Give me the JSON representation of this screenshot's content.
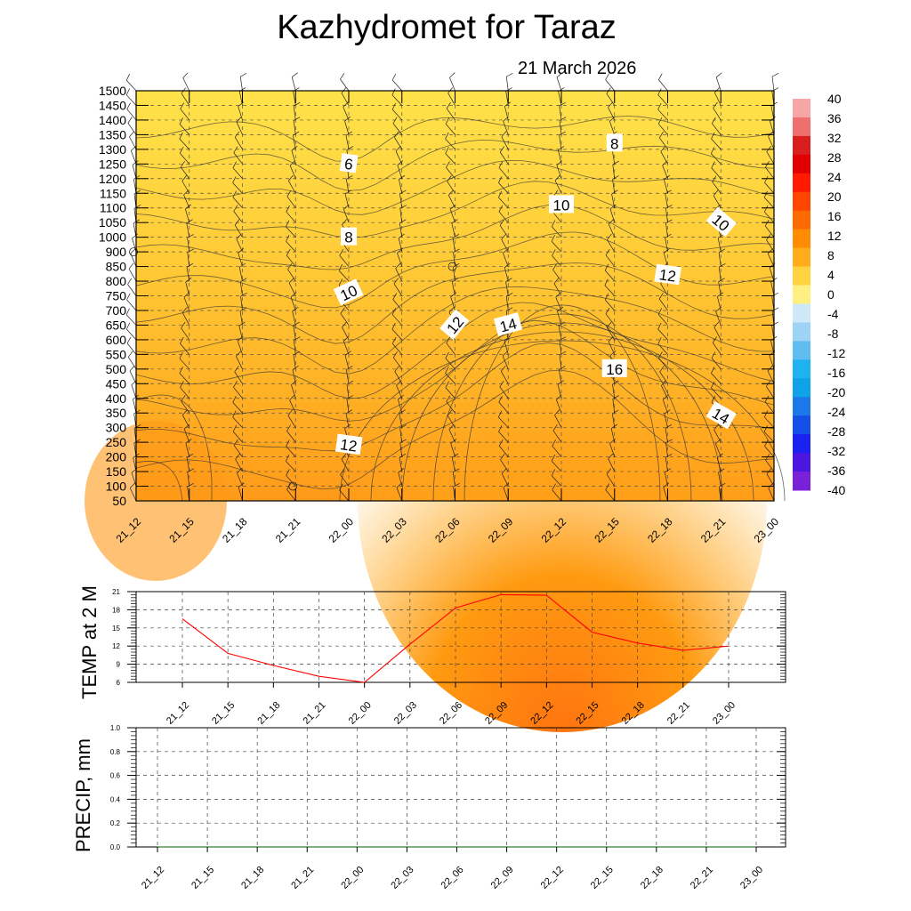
{
  "title": "Kazhydromet  for Taraz",
  "subtitle": "21 March 2026",
  "time_labels": [
    "21_12",
    "21_15",
    "21_18",
    "21_21",
    "22_00",
    "22_03",
    "22_06",
    "22_09",
    "22_12",
    "22_15",
    "22_18",
    "22_21",
    "23_00"
  ],
  "colorbar": {
    "labels": [
      "40",
      "36",
      "32",
      "28",
      "24",
      "20",
      "16",
      "12",
      "8",
      "4",
      "0",
      "-4",
      "-8",
      "-12",
      "-16",
      "-20",
      "-24",
      "-28",
      "-32",
      "-36",
      "-40"
    ],
    "colors": [
      "#f7a6a6",
      "#ef6f6f",
      "#d91e1e",
      "#e00000",
      "#ff1a00",
      "#ff4500",
      "#ff6a00",
      "#ff8c00",
      "#ffad1a",
      "#ffd23f",
      "#ffef80",
      "#cfe8f7",
      "#9fd3f5",
      "#5fbdf0",
      "#1fb2f0",
      "#10a2e8",
      "#1a78e8",
      "#1450e8",
      "#1b22f0",
      "#4a16e0",
      "#7a20d8"
    ]
  },
  "chart_data": [
    {
      "type": "heatmap",
      "title": "Kazhydromet  for Taraz",
      "subtitle": "21 March 2026",
      "x": [
        "21_12",
        "21_15",
        "21_18",
        "21_21",
        "22_00",
        "22_03",
        "22_06",
        "22_09",
        "22_12",
        "22_15",
        "22_18",
        "22_21",
        "23_00"
      ],
      "y_ticks": [
        50,
        100,
        150,
        200,
        250,
        300,
        350,
        400,
        450,
        500,
        550,
        600,
        650,
        700,
        750,
        800,
        850,
        900,
        1000,
        1050,
        1100,
        1150,
        1200,
        1250,
        1300,
        1350,
        1400,
        1450,
        1500
      ],
      "colorbar_range": [
        -40,
        40
      ],
      "contour_labels": [
        {
          "value": "6",
          "x": "22_00",
          "y": 1250,
          "angle": 8
        },
        {
          "value": "8",
          "x": "22_00",
          "y": 1000,
          "angle": 0
        },
        {
          "value": "8",
          "x": "22_15",
          "y": 1320,
          "angle": 0
        },
        {
          "value": "10",
          "x": "22_00",
          "y": 760,
          "angle": -25
        },
        {
          "value": "10",
          "x": "22_12",
          "y": 1110,
          "angle": 0
        },
        {
          "value": "10",
          "x": "22_21",
          "y": 1050,
          "angle": 40
        },
        {
          "value": "12",
          "x": "22_06",
          "y": 650,
          "angle": -50
        },
        {
          "value": "12",
          "x": "22_18",
          "y": 820,
          "angle": 8
        },
        {
          "value": "12",
          "x": "22_00",
          "y": 240,
          "angle": 8
        },
        {
          "value": "14",
          "x": "22_09",
          "y": 650,
          "angle": -15
        },
        {
          "value": "14",
          "x": "22_21",
          "y": 340,
          "angle": 30
        },
        {
          "value": "16",
          "x": "22_15",
          "y": 500,
          "angle": 0
        }
      ],
      "grid": true
    },
    {
      "type": "line",
      "ylabel": "TEMP at 2 M",
      "x": [
        "21_12",
        "21_15",
        "21_18",
        "21_21",
        "22_00",
        "22_03",
        "22_06",
        "22_09",
        "22_12",
        "22_15",
        "22_18",
        "22_21",
        "23_00"
      ],
      "series": [
        {
          "values": [
            16.5,
            10.8,
            8.8,
            7.0,
            6.0,
            12.3,
            18.3,
            20.5,
            20.4,
            14.3,
            12.5,
            11.3,
            12.0
          ],
          "color": "#ff0000"
        }
      ],
      "yticks": [
        "21",
        "18",
        "15",
        "12",
        "9",
        "6"
      ],
      "ylim": [
        6,
        21
      ],
      "grid": true
    },
    {
      "type": "line",
      "ylabel": "PRECIP, mm",
      "x": [
        "21_12",
        "21_15",
        "21_18",
        "21_21",
        "22_00",
        "22_03",
        "22_06",
        "22_09",
        "22_12",
        "22_15",
        "22_18",
        "22_21",
        "23_00"
      ],
      "series": [
        {
          "values": [
            0,
            0,
            0,
            0,
            0,
            0,
            0,
            0,
            0,
            0,
            0,
            0,
            0
          ],
          "color": "#006400"
        }
      ],
      "yticks": [
        "1.0",
        "0.8",
        "0.6",
        "0.4",
        "0.2",
        "0.0"
      ],
      "ylim": [
        0,
        1
      ],
      "grid": true
    }
  ]
}
